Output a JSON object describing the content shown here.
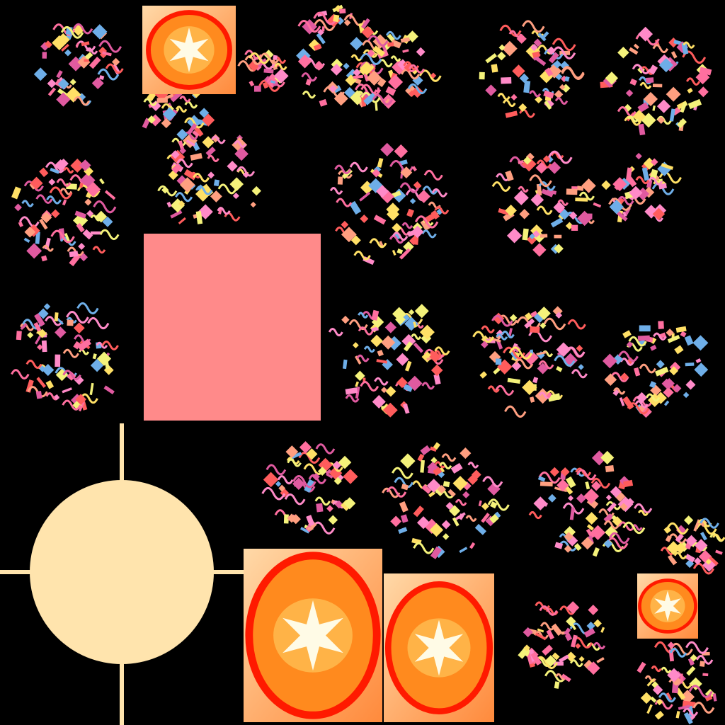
{
  "sheet": {
    "background": "#000000",
    "confetti_palette": [
      "#ff6f9f",
      "#ff5c5c",
      "#ff8ac8",
      "#6eaee8",
      "#ffe066",
      "#f4f27a",
      "#ff9f80",
      "#e05aa0"
    ],
    "explosion_colors": {
      "rim": "#ff1a00",
      "body": "#ff8a1e",
      "core": "#fffbe6"
    },
    "block_color": "#ff8a8a",
    "orb_color": "#ffe4ad"
  },
  "sprites": [
    {
      "name": "explosion-frame-small",
      "kind": "explosion"
    },
    {
      "name": "explosion-frame-large",
      "kind": "explosion"
    },
    {
      "name": "explosion-frame-split",
      "kind": "explosion"
    },
    {
      "name": "explosion-frame-tiny",
      "kind": "explosion"
    },
    {
      "name": "pink-particle-block",
      "kind": "solid"
    },
    {
      "name": "glow-orb",
      "kind": "flare"
    },
    {
      "name": "confetti-burst",
      "kind": "particles",
      "count": 22
    }
  ]
}
